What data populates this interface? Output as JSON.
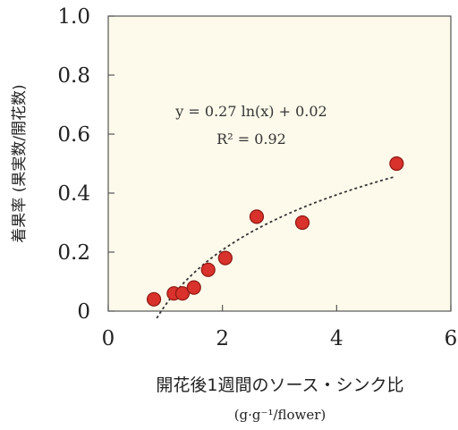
{
  "chart_data": {
    "type": "scatter",
    "title": "",
    "xlabel": "開花後1週間のソース・シンク比",
    "xunit": "(g·g⁻¹/flower)",
    "ylabel": "着果率 (果実数/開花数)",
    "xlim": [
      0,
      6
    ],
    "ylim": [
      0,
      1.0
    ],
    "x_ticks": [
      "0",
      "2",
      "4",
      "6"
    ],
    "y_ticks": [
      "0",
      "0.2",
      "0.4",
      "0.6",
      "0.8",
      "1.0"
    ],
    "grid": false,
    "points": [
      {
        "x": 0.8,
        "y": 0.04
      },
      {
        "x": 1.15,
        "y": 0.06
      },
      {
        "x": 1.3,
        "y": 0.06
      },
      {
        "x": 1.5,
        "y": 0.08
      },
      {
        "x": 1.75,
        "y": 0.14
      },
      {
        "x": 2.05,
        "y": 0.18
      },
      {
        "x": 2.6,
        "y": 0.32
      },
      {
        "x": 3.4,
        "y": 0.3
      },
      {
        "x": 5.05,
        "y": 0.5
      }
    ],
    "trendline": {
      "type": "logarithmic",
      "a": 0.27,
      "b": 0.02,
      "x_range": [
        0.85,
        5.0
      ]
    },
    "equation": "y = 0.27 ln(x) + 0.02",
    "r2_label": "R² = 0.92",
    "colors": {
      "marker": "#d9312b",
      "marker_edge": "#8a1a14",
      "plot_bg": "#fdfaeb",
      "trend": "#333333"
    }
  }
}
